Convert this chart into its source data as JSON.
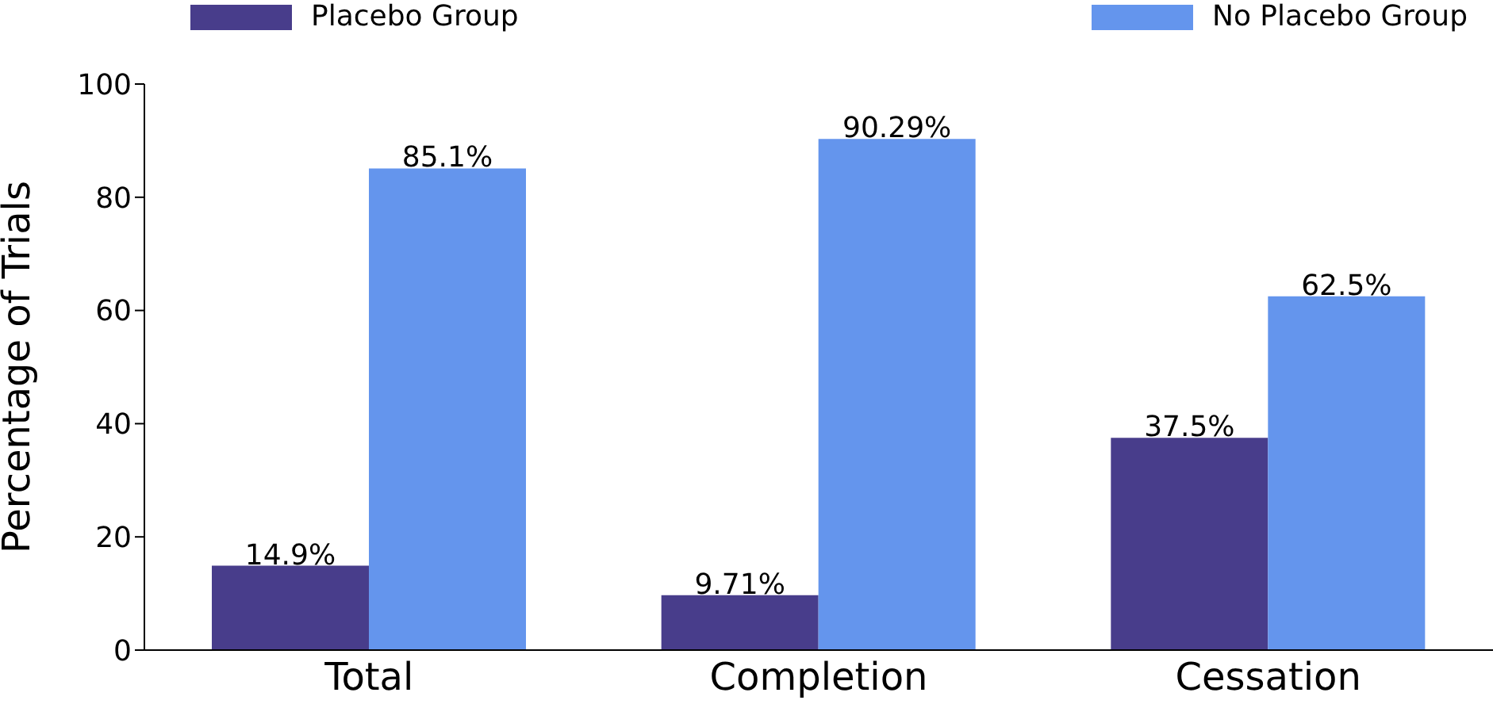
{
  "chart_data": {
    "type": "bar",
    "categories": [
      "Total",
      "Completion",
      "Cessation"
    ],
    "ylabel": "Percentage of Trials",
    "ylim": [
      0,
      100
    ],
    "yticks": [
      0,
      20,
      40,
      60,
      80,
      100
    ],
    "grid": false,
    "legend": "top",
    "series": [
      {
        "name": "Placebo Group",
        "color": "#483d8b",
        "values": [
          14.9,
          9.71,
          37.5
        ],
        "value_labels": [
          "14.9%",
          "9.71%",
          "37.5%"
        ]
      },
      {
        "name": "No Placebo Group",
        "color": "#6495ed",
        "values": [
          85.1,
          90.29,
          62.5
        ],
        "value_labels": [
          "85.1%",
          "90.29%",
          "62.5%"
        ]
      }
    ]
  }
}
